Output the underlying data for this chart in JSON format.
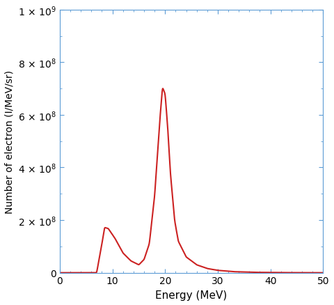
{
  "title": "",
  "xlabel": "Energy (MeV)",
  "ylabel": "Number of electron (I/MeV/sr)",
  "xlim": [
    0,
    50
  ],
  "ylim": [
    0,
    1000000000.0
  ],
  "line_color": "#cc2222",
  "background_color": "#ffffff",
  "tick_color": "#5b9bd5",
  "spine_color": "#5b9bd5",
  "yticks": [
    0,
    200000000.0,
    400000000.0,
    600000000.0,
    800000000.0,
    1000000000.0
  ],
  "xticks": [
    0,
    10,
    20,
    30,
    40,
    50
  ]
}
